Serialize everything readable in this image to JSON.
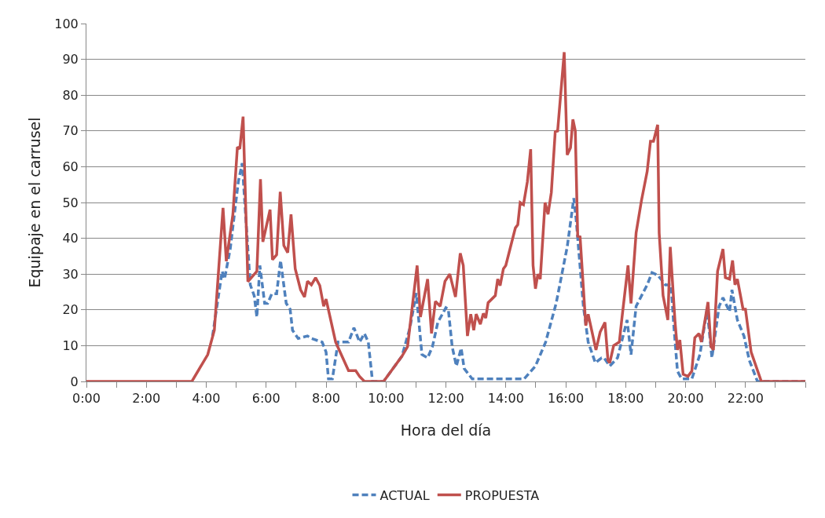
{
  "chart_data": {
    "type": "line",
    "xlabel": "Hora del día",
    "ylabel": "Equipaje en el carrusel",
    "xlim": [
      0,
      24
    ],
    "ylim": [
      0,
      100
    ],
    "xticks": [
      {
        "value": 0,
        "label": "0:00"
      },
      {
        "value": 1,
        "label": null
      },
      {
        "value": 2,
        "label": "2:00"
      },
      {
        "value": 3,
        "label": null
      },
      {
        "value": 4,
        "label": "4:00"
      },
      {
        "value": 5,
        "label": null
      },
      {
        "value": 6,
        "label": "6:00"
      },
      {
        "value": 7,
        "label": null
      },
      {
        "value": 8,
        "label": "8:00"
      },
      {
        "value": 9,
        "label": null
      },
      {
        "value": 10,
        "label": "10:00"
      },
      {
        "value": 11,
        "label": null
      },
      {
        "value": 12,
        "label": "12:00"
      },
      {
        "value": 13,
        "label": null
      },
      {
        "value": 14,
        "label": "14:00"
      },
      {
        "value": 15,
        "label": null
      },
      {
        "value": 16,
        "label": "16:00"
      },
      {
        "value": 17,
        "label": null
      },
      {
        "value": 18,
        "label": "18:00"
      },
      {
        "value": 19,
        "label": null
      },
      {
        "value": 20,
        "label": "20:00"
      },
      {
        "value": 21,
        "label": null
      },
      {
        "value": 22,
        "label": "22:00"
      },
      {
        "value": 23,
        "label": null
      },
      {
        "value": 24,
        "label": null
      }
    ],
    "yticks": [
      0,
      10,
      20,
      30,
      40,
      50,
      60,
      70,
      80,
      90,
      100
    ],
    "grid": "y",
    "legend": "bottom",
    "marker": "none",
    "series": [
      {
        "name": "ACTUAL",
        "color": "#4f81bd",
        "line_style": "dashed",
        "x": [
          4.21,
          4.53,
          4.61,
          4.8,
          5.07,
          5.2,
          5.33,
          5.47,
          5.6,
          5.69,
          5.79,
          5.95,
          6.05,
          6.19,
          6.35,
          6.48,
          6.67,
          6.8,
          6.88,
          7.07,
          7.38,
          7.51,
          7.87,
          8.0,
          8.08,
          8.21,
          8.4,
          8.75,
          8.93,
          9.12,
          9.28,
          9.41,
          9.55,
          9.92,
          10.53,
          10.8,
          11.01,
          11.2,
          11.39,
          11.55,
          11.73,
          12.0,
          12.08,
          12.21,
          12.35,
          12.51,
          12.61,
          12.88,
          14.61,
          14.99,
          15.33,
          15.68,
          16.05,
          16.27,
          16.35,
          16.59,
          16.75,
          16.99,
          17.2,
          17.28,
          17.47,
          17.73,
          18.05,
          18.18,
          18.35,
          18.72,
          18.88,
          19.07,
          19.33,
          19.52,
          19.6,
          19.73,
          19.87,
          20.21,
          20.48,
          20.72,
          20.88,
          21.12,
          21.25,
          21.47,
          21.55,
          21.73,
          21.95,
          22.13,
          22.4,
          24
        ],
        "values": [
          12.7,
          30.8,
          28.6,
          37,
          55.8,
          61,
          44.4,
          27,
          24,
          18,
          32.4,
          21.8,
          21.8,
          24.5,
          24.5,
          33.8,
          21.8,
          20.2,
          14.3,
          12,
          12.7,
          12,
          11,
          8.2,
          0.7,
          0.7,
          11,
          11,
          15,
          11,
          13.4,
          11,
          0,
          0,
          7,
          15,
          24.7,
          7.5,
          6.6,
          9.7,
          16.5,
          20.6,
          20.2,
          9.7,
          4.3,
          9.3,
          3.6,
          0.7,
          0.7,
          4.3,
          11,
          21.8,
          37.6,
          51.2,
          45.1,
          21,
          11,
          5.2,
          6.6,
          6.6,
          4.3,
          6.6,
          17.2,
          7.5,
          21,
          27,
          30.4,
          29.7,
          27,
          27,
          16.5,
          2.9,
          0.7,
          0.7,
          7.5,
          20.2,
          6.6,
          21,
          23.4,
          19.5,
          25.6,
          17.2,
          12.7,
          5.9,
          0,
          0
        ]
      },
      {
        "name": "PROPUESTA",
        "color": "#c0504d",
        "line_style": "solid",
        "x": [
          0,
          3.52,
          4.05,
          4.27,
          4.56,
          4.67,
          4.89,
          5.04,
          5.12,
          5.23,
          5.39,
          5.69,
          5.81,
          5.89,
          6.13,
          6.21,
          6.35,
          6.47,
          6.59,
          6.72,
          6.83,
          6.97,
          7.15,
          7.28,
          7.38,
          7.51,
          7.65,
          7.79,
          7.92,
          8.0,
          8.32,
          8.48,
          8.75,
          8.99,
          9.12,
          9.28,
          9.92,
          10.53,
          10.72,
          11.04,
          11.15,
          11.39,
          11.52,
          11.65,
          11.81,
          11.97,
          12.13,
          12.32,
          12.48,
          12.58,
          12.72,
          12.83,
          12.93,
          13.01,
          13.15,
          13.25,
          13.33,
          13.41,
          13.65,
          13.73,
          13.81,
          13.92,
          14.0,
          14.32,
          14.4,
          14.48,
          14.59,
          14.72,
          14.83,
          14.91,
          14.99,
          15.07,
          15.15,
          15.25,
          15.31,
          15.41,
          15.52,
          15.65,
          15.73,
          15.95,
          16.05,
          16.16,
          16.24,
          16.32,
          16.4,
          16.48,
          16.67,
          16.75,
          17.01,
          17.15,
          17.31,
          17.41,
          17.47,
          17.6,
          17.79,
          17.87,
          18.08,
          18.18,
          18.35,
          18.53,
          18.72,
          18.83,
          18.93,
          19.07,
          19.12,
          19.25,
          19.41,
          19.49,
          19.65,
          19.73,
          19.81,
          19.92,
          20.08,
          20.21,
          20.31,
          20.45,
          20.53,
          20.75,
          20.85,
          20.93,
          21.07,
          21.25,
          21.33,
          21.47,
          21.57,
          21.65,
          21.73,
          21.92,
          22.0,
          22.19,
          22.53,
          24
        ],
        "values": [
          0,
          0,
          7.5,
          14.3,
          48.5,
          33.6,
          46.7,
          65.5,
          65,
          74,
          27.9,
          30.8,
          56.5,
          39,
          48,
          34,
          35.4,
          53,
          38,
          36,
          46.7,
          31.5,
          25.6,
          23.6,
          28,
          27,
          29,
          26.8,
          21,
          23,
          11,
          8,
          3,
          3,
          1.4,
          0,
          0,
          7,
          9.7,
          32.4,
          18,
          28.6,
          13.4,
          22.4,
          21,
          28,
          30,
          23.6,
          35.8,
          32.4,
          12.7,
          18.8,
          14.3,
          18.8,
          16,
          19,
          17.7,
          22,
          24,
          28.6,
          26.8,
          31.5,
          32.4,
          42.9,
          43.8,
          50,
          49.4,
          55.8,
          64.9,
          32.4,
          25.9,
          30,
          28.6,
          42,
          50,
          46.7,
          52.8,
          69.8,
          70,
          92,
          63.3,
          65.3,
          73.2,
          70,
          40.6,
          40.4,
          15.6,
          18.8,
          8.8,
          13.8,
          16.5,
          5.9,
          5.2,
          10,
          11,
          17.2,
          32.4,
          21.8,
          41.5,
          50.6,
          58.7,
          67.1,
          67.1,
          71.7,
          41.5,
          24,
          17.2,
          37.6,
          16.5,
          8.8,
          11.6,
          2,
          1.4,
          2.9,
          12.2,
          13.4,
          11,
          22.2,
          9.8,
          8.8,
          30.8,
          37,
          29,
          28.6,
          33.8,
          27,
          28.6,
          20.2,
          20.2,
          8.2,
          0,
          0
        ]
      }
    ]
  }
}
